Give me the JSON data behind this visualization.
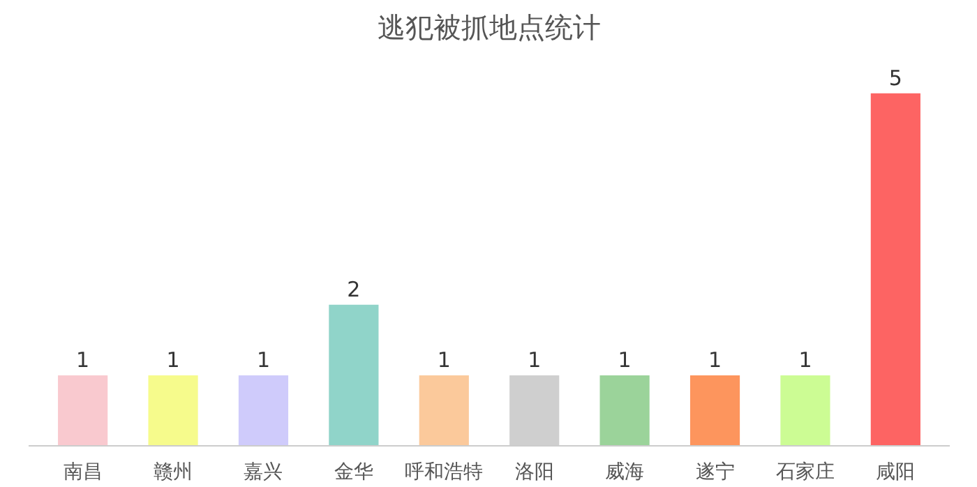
{
  "chart_data": {
    "type": "bar",
    "title": "逃犯被抓地点统计",
    "categories": [
      "南昌",
      "赣州",
      "嘉兴",
      "金华",
      "呼和浩特",
      "洛阳",
      "威海",
      "遂宁",
      "石家庄",
      "咸阳"
    ],
    "values": [
      1,
      1,
      1,
      2,
      1,
      1,
      1,
      1,
      1,
      5
    ],
    "colors": [
      "#f9c9cf",
      "#f6fb8c",
      "#cfcbfb",
      "#90d4c9",
      "#fbc99b",
      "#cfcfcf",
      "#9bd39a",
      "#fd955d",
      "#ccfc94",
      "#fd6463"
    ],
    "data_labels": true,
    "grid": false
  }
}
